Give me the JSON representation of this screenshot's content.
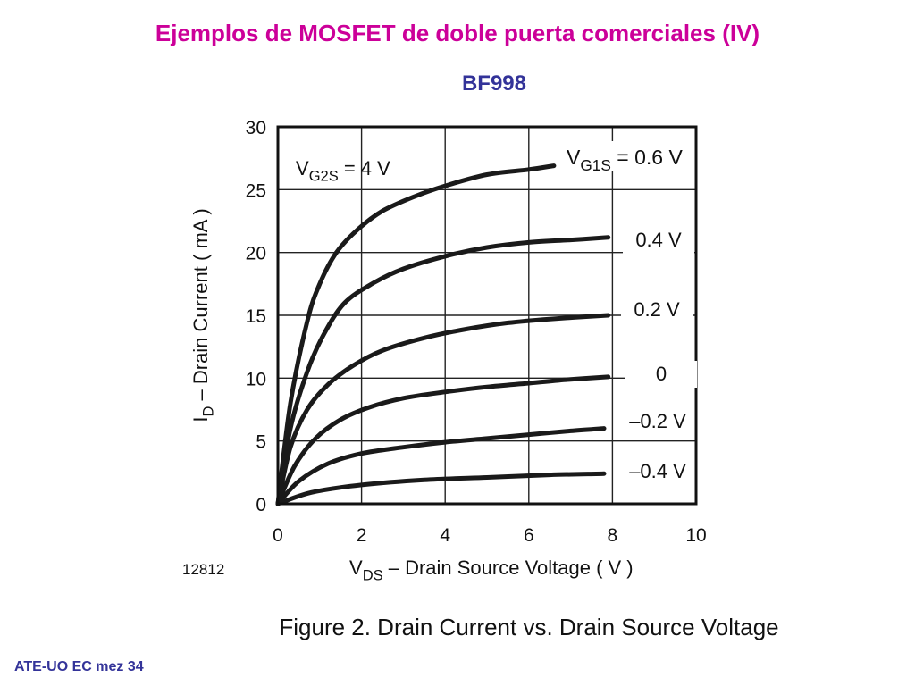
{
  "slide": {
    "title": "Ejemplos de MOSFET de doble puerta comerciales (IV)",
    "subtitle": "BF998",
    "footer": "ATE-UO EC mez 34",
    "title_color": "#cc0099",
    "subtitle_color": "#333399",
    "footer_color": "#333399"
  },
  "chart_data": {
    "type": "line",
    "title": "Figure 2. Drain Current vs. Drain Source Voltage",
    "figure_number": "12812",
    "xlabel": {
      "main": "V",
      "sub": "DS",
      "rest": " – Drain Source Voltage ( V )"
    },
    "ylabel": {
      "main": "I",
      "sub": "D",
      "rest": " – Drain Current ( mA )"
    },
    "annotation": {
      "main": "V",
      "sub": "G2S",
      "rest": " = 4 V"
    },
    "legend_prefix": {
      "main": "V",
      "sub": "G1S",
      "rest": " = 0.6 V"
    },
    "xlim": [
      0,
      10
    ],
    "ylim": [
      0,
      30
    ],
    "xticks": [
      0,
      2,
      4,
      6,
      8,
      10
    ],
    "yticks": [
      0,
      5,
      10,
      15,
      20,
      25,
      30
    ],
    "grid": true,
    "series": [
      {
        "name": "0.6 V",
        "label": "",
        "x": [
          0,
          0.3,
          0.7,
          1.0,
          1.4,
          1.9,
          2.5,
          3.3,
          4.0,
          5.0,
          6.0,
          6.6
        ],
        "y": [
          0,
          8,
          14.5,
          17.5,
          20,
          21.8,
          23.3,
          24.5,
          25.3,
          26.2,
          26.6,
          26.9
        ]
      },
      {
        "name": "0.4 V",
        "label": "0.4 V",
        "x": [
          0,
          0.3,
          0.7,
          1.1,
          1.6,
          2.3,
          3.0,
          4.0,
          5.0,
          6.0,
          7.0,
          7.9
        ],
        "y": [
          0,
          6,
          10.5,
          13.5,
          16,
          17.6,
          18.7,
          19.7,
          20.4,
          20.8,
          21.0,
          21.2
        ]
      },
      {
        "name": "0.2 V",
        "label": "0.2 V",
        "x": [
          0,
          0.3,
          0.7,
          1.2,
          1.8,
          2.5,
          3.5,
          4.5,
          5.5,
          6.5,
          7.9
        ],
        "y": [
          0,
          4.5,
          7.5,
          9.5,
          11,
          12.2,
          13.2,
          13.9,
          14.4,
          14.7,
          15.0
        ]
      },
      {
        "name": "0",
        "label": "0",
        "x": [
          0,
          0.4,
          0.9,
          1.5,
          2.2,
          3.0,
          4.0,
          5.0,
          6.0,
          7.0,
          7.9
        ],
        "y": [
          0,
          3,
          5.2,
          6.7,
          7.7,
          8.4,
          8.9,
          9.3,
          9.6,
          9.9,
          10.1
        ]
      },
      {
        "name": "-0.2 V",
        "label": "–0.2 V",
        "x": [
          0,
          0.5,
          1.2,
          2.0,
          3.0,
          4.0,
          5.0,
          6.0,
          7.0,
          7.8
        ],
        "y": [
          0,
          1.8,
          3.2,
          4.0,
          4.5,
          4.9,
          5.2,
          5.5,
          5.8,
          6.0
        ]
      },
      {
        "name": "-0.4 V",
        "label": "–0.4 V",
        "x": [
          0,
          0.8,
          2.0,
          3.5,
          5.0,
          6.5,
          7.8
        ],
        "y": [
          0,
          0.9,
          1.5,
          1.9,
          2.1,
          2.3,
          2.4
        ]
      }
    ]
  }
}
